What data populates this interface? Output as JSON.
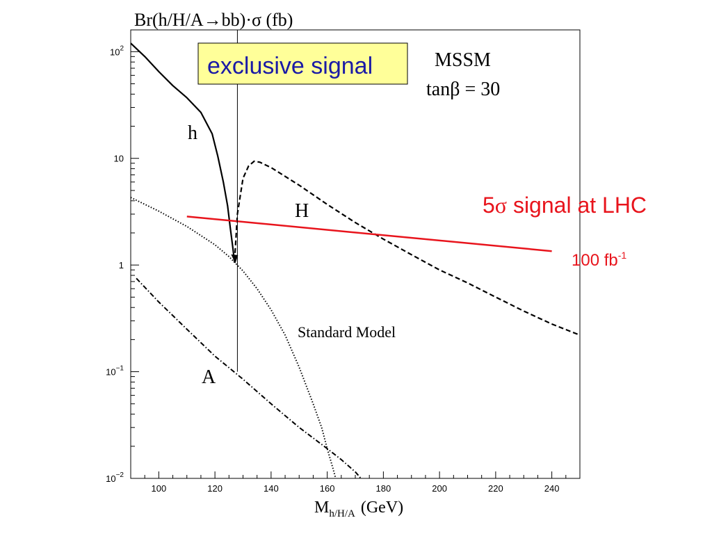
{
  "chart_data": {
    "type": "line",
    "title": "Br(h/H/A→bb)·σ   (fb)",
    "xlabel": {
      "main": "M",
      "sub": "h/H/A",
      "unit": "(GeV)"
    },
    "ylabel": "",
    "xlim": [
      90,
      250
    ],
    "ylim": [
      0.01,
      160
    ],
    "yscale": "log",
    "grid": false,
    "x_ticks": [
      100,
      120,
      140,
      160,
      180,
      200,
      220,
      240
    ],
    "y_ticks": [
      {
        "value": 100,
        "base": "10",
        "exp": "2"
      },
      {
        "value": 10,
        "base": "10",
        "exp": ""
      },
      {
        "value": 1,
        "base": "1",
        "exp": ""
      },
      {
        "value": 0.1,
        "base": "10",
        "exp": "−1"
      },
      {
        "value": 0.01,
        "base": "10",
        "exp": "−2"
      }
    ],
    "series": [
      {
        "name": "h",
        "style": "solid",
        "color": "#000000",
        "x": [
          90,
          95,
          100,
          105,
          110,
          115,
          119,
          121,
          123,
          124.5,
          125.5,
          126.3,
          127
        ],
        "y": [
          120,
          90,
          65,
          48,
          37,
          27,
          17,
          10.5,
          6,
          3.6,
          2.2,
          1.5,
          1.05
        ]
      },
      {
        "name": "H",
        "style": "dashed",
        "color": "#000000",
        "x": [
          127,
          128,
          130,
          132,
          134,
          136,
          140,
          150,
          160,
          170,
          180,
          190,
          200,
          210,
          220,
          230,
          240,
          250
        ],
        "y": [
          1.1,
          3.0,
          6.5,
          8.5,
          9.4,
          9.2,
          8.2,
          5.6,
          3.7,
          2.5,
          1.75,
          1.25,
          0.9,
          0.68,
          0.5,
          0.37,
          0.28,
          0.22
        ]
      },
      {
        "name": "Standard Model",
        "style": "dotted",
        "color": "#000000",
        "x": [
          90,
          100,
          110,
          120,
          125,
          130,
          135,
          140,
          145,
          150,
          155,
          158,
          160,
          162,
          163
        ],
        "y": [
          4.3,
          3.2,
          2.3,
          1.55,
          1.2,
          0.88,
          0.6,
          0.38,
          0.22,
          0.11,
          0.05,
          0.03,
          0.019,
          0.0125,
          0.01
        ]
      },
      {
        "name": "A",
        "style": "dashdot",
        "color": "#000000",
        "x": [
          92,
          100,
          110,
          120,
          130,
          140,
          150,
          160,
          165,
          170,
          172
        ],
        "y": [
          0.75,
          0.45,
          0.25,
          0.14,
          0.085,
          0.05,
          0.03,
          0.019,
          0.015,
          0.0115,
          0.01
        ]
      },
      {
        "name": "5σ signal at LHC",
        "style": "solid",
        "color": "#e8141c",
        "x": [
          110,
          240
        ],
        "y": [
          2.85,
          1.35
        ]
      }
    ],
    "vline": {
      "x": 128,
      "y_from": 0.1,
      "y_to": 160
    },
    "annotations": {
      "exclusive_signal": "exclusive signal",
      "mssm": "MSSM",
      "tanb_prefix": "tanβ = 30",
      "label_h": "h",
      "label_H": "H",
      "label_A": "A",
      "label_sm": "Standard Model",
      "signal_5sigma_num": "5",
      "signal_5sigma_sym": "σ",
      "signal_5sigma_text": " signal at LHC",
      "lumi_value": "100 fb",
      "lumi_exp": "-1"
    },
    "colors": {
      "box_fill": "#ffff99",
      "box_text": "#1a1aa6",
      "signal": "#e8141c"
    }
  }
}
